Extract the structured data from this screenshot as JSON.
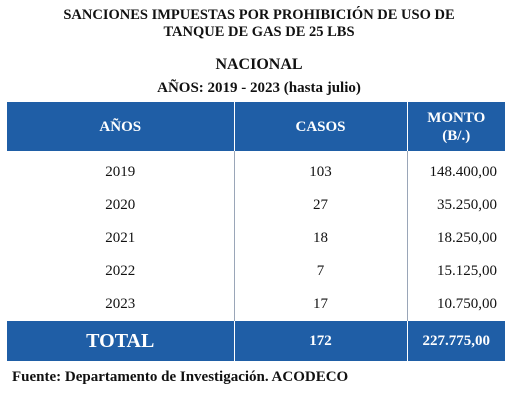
{
  "header": {
    "title_line1": "SANCIONES IMPUESTAS POR PROHIBICIÓN DE USO DE",
    "title_line2": "TANQUE DE GAS DE 25 LBS",
    "subtitle": "NACIONAL",
    "years_range": "AÑOS: 2019 - 2023 (hasta julio)"
  },
  "table": {
    "columns": [
      "AÑOS",
      "CASOS",
      "MONTO",
      "(B/.)"
    ],
    "rows": [
      {
        "year": "2019",
        "cases": "103",
        "amount": "148.400,00"
      },
      {
        "year": "2020",
        "cases": "27",
        "amount": "35.250,00"
      },
      {
        "year": "2021",
        "cases": "18",
        "amount": "18.250,00"
      },
      {
        "year": "2022",
        "cases": "7",
        "amount": "15.125,00"
      },
      {
        "year": "2023",
        "cases": "17",
        "amount": "10.750,00"
      }
    ],
    "total": {
      "label": "TOTAL",
      "cases": "172",
      "amount": "227.775,00"
    }
  },
  "footer": {
    "source": "Fuente: Departamento de Investigación. ACODECO"
  },
  "colors": {
    "header_bg": "#1f5ea6",
    "header_text": "#ffffff"
  }
}
